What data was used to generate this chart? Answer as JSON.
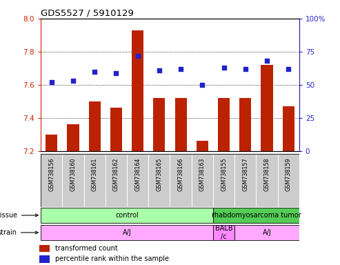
{
  "title": "GDS5527 / 5910129",
  "samples": [
    "GSM738156",
    "GSM738160",
    "GSM738161",
    "GSM738162",
    "GSM738164",
    "GSM738165",
    "GSM738166",
    "GSM738163",
    "GSM738155",
    "GSM738157",
    "GSM738158",
    "GSM738159"
  ],
  "bar_values": [
    7.3,
    7.36,
    7.5,
    7.46,
    7.93,
    7.52,
    7.52,
    7.26,
    7.52,
    7.52,
    7.72,
    7.47
  ],
  "dot_values": [
    52,
    53,
    60,
    59,
    72,
    61,
    62,
    50,
    63,
    62,
    68,
    62
  ],
  "ylim_left": [
    7.2,
    8.0
  ],
  "ylim_right": [
    0,
    100
  ],
  "yticks_left": [
    7.2,
    7.4,
    7.6,
    7.8,
    8.0
  ],
  "yticks_right": [
    0,
    25,
    50,
    75,
    100
  ],
  "ytick_labels_right": [
    "0",
    "25",
    "50",
    "75",
    "100%"
  ],
  "bar_color": "#bb2200",
  "dot_color": "#2222cc",
  "bar_bottom": 7.2,
  "tissue_groups": [
    {
      "label": "control",
      "start": 0,
      "end": 8,
      "color": "#aaffaa"
    },
    {
      "label": "rhabdomyosarcoma tumor",
      "start": 8,
      "end": 12,
      "color": "#55cc55"
    }
  ],
  "strain_groups": [
    {
      "label": "A/J",
      "start": 0,
      "end": 8,
      "color": "#ffaaff"
    },
    {
      "label": "BALB\n/c",
      "start": 8,
      "end": 9,
      "color": "#ff88ff"
    },
    {
      "label": "A/J",
      "start": 9,
      "end": 12,
      "color": "#ffaaff"
    }
  ],
  "legend_red_label": "transformed count",
  "legend_blue_label": "percentile rank within the sample",
  "grid_linestyle": "dotted",
  "left_yaxis_color": "#cc2200",
  "right_yaxis_color": "#2222cc"
}
